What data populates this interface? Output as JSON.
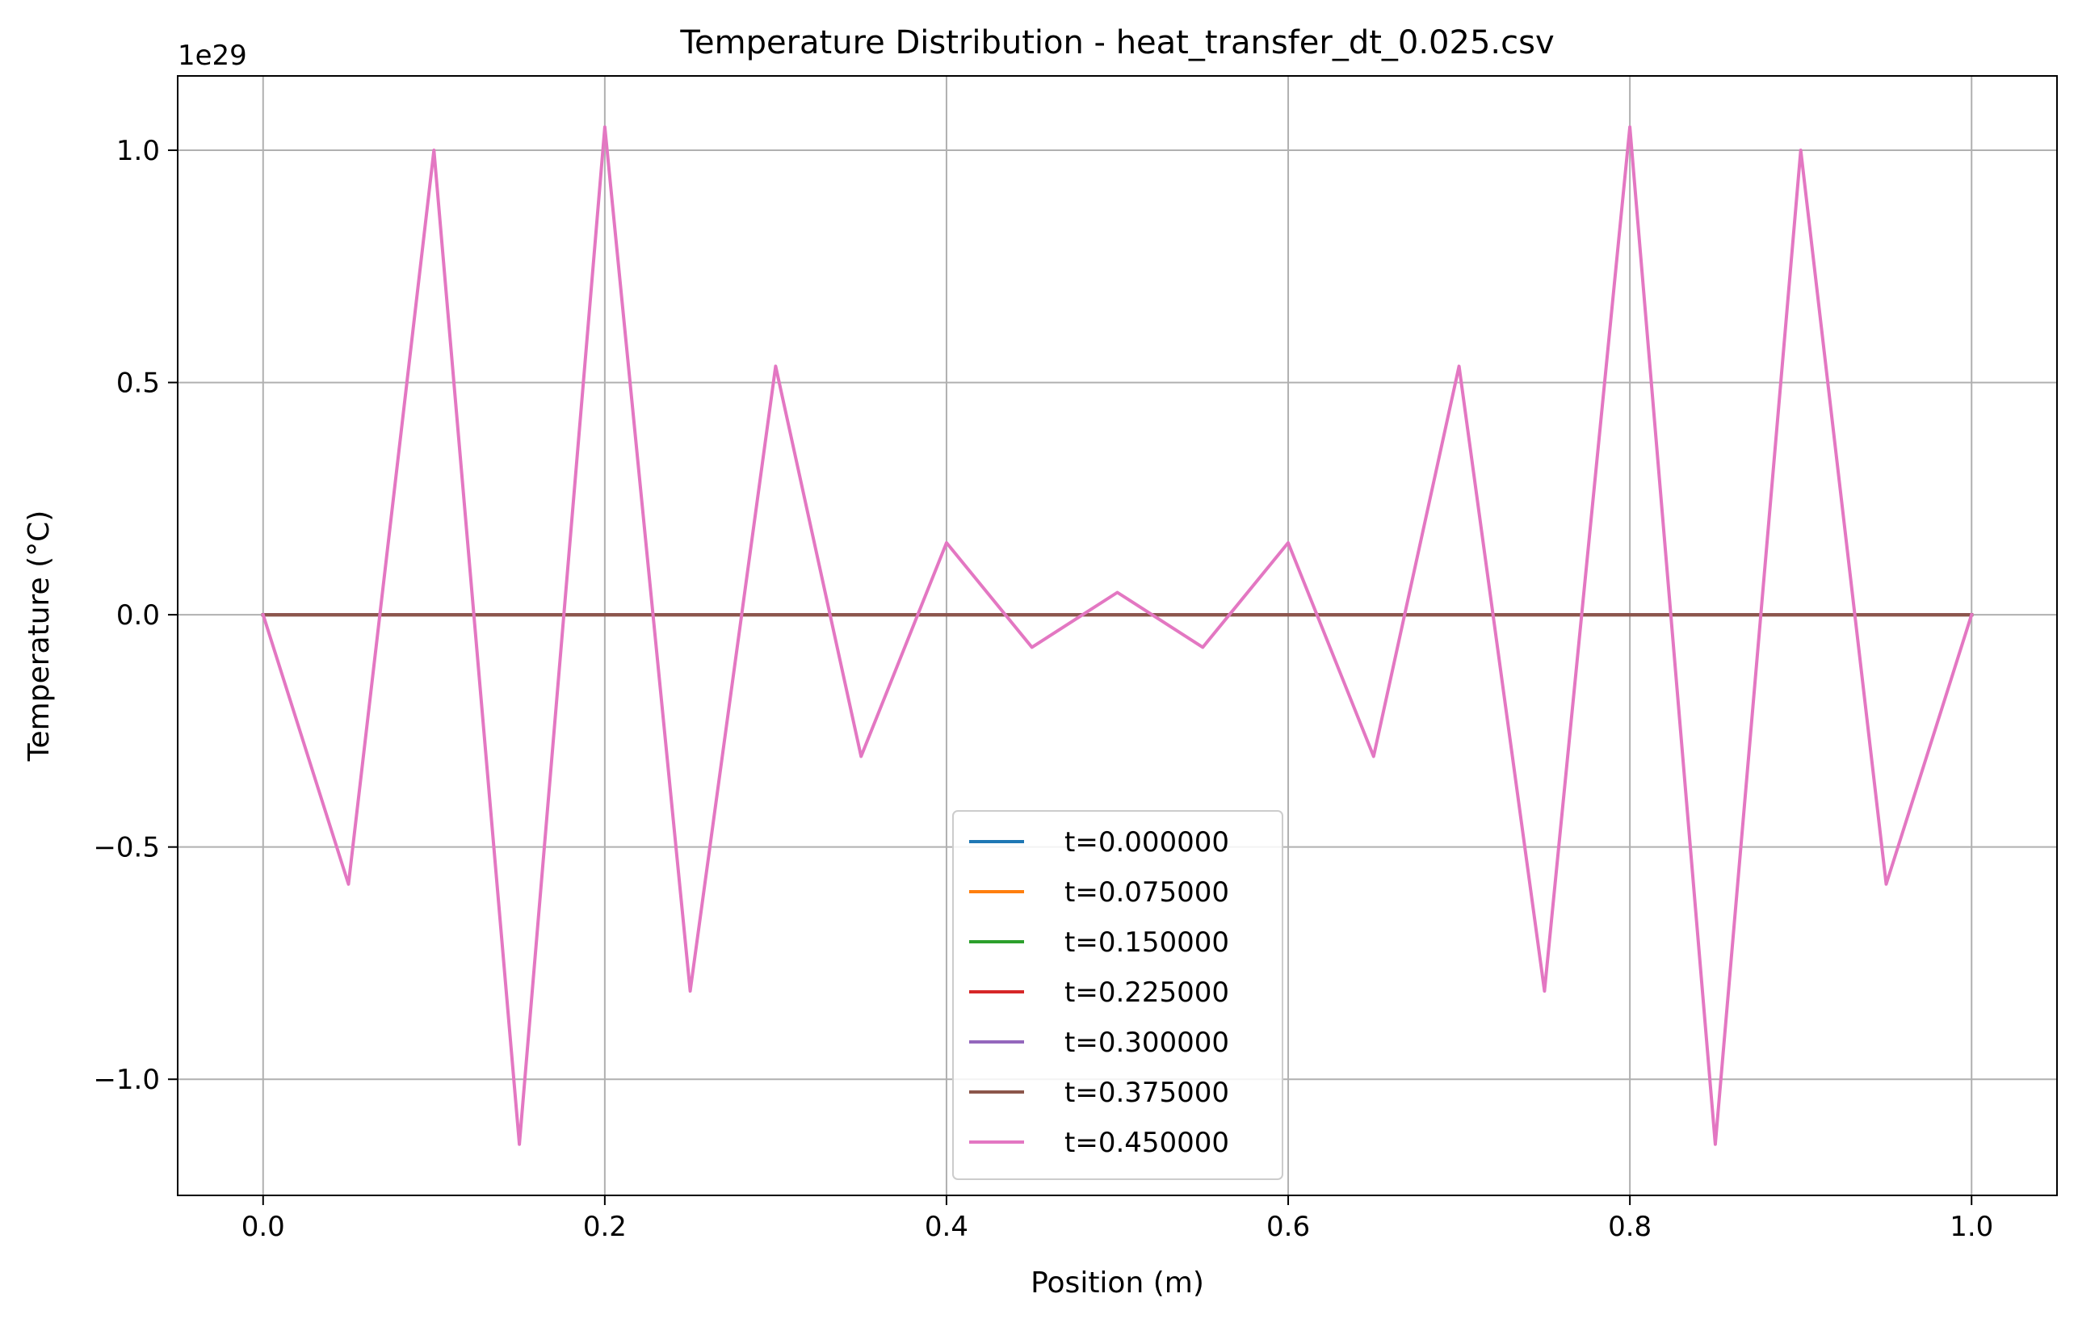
{
  "chart_data": {
    "type": "line",
    "title": "Temperature Distribution - heat_transfer_dt_0.025.csv",
    "xlabel": "Position (m)",
    "ylabel": "Temperature (°C)",
    "y_offset_label": "1e29",
    "xlim": [
      -0.05,
      1.05
    ],
    "ylim": [
      -1.25,
      1.16
    ],
    "y_scale_multiplier": 1e+29,
    "grid": true,
    "legend_position": "lower center",
    "x_ticks": [
      0.0,
      0.2,
      0.4,
      0.6,
      0.8,
      1.0
    ],
    "x_tick_labels": [
      "0.0",
      "0.2",
      "0.4",
      "0.6",
      "0.8",
      "1.0"
    ],
    "y_ticks": [
      -1.0,
      -0.5,
      0.0,
      0.5,
      1.0
    ],
    "y_tick_labels": [
      "−1.0",
      "−0.5",
      "0.0",
      "0.5",
      "1.0"
    ],
    "x": [
      0.0,
      0.05,
      0.1,
      0.15,
      0.2,
      0.25,
      0.3,
      0.35,
      0.4,
      0.45,
      0.5,
      0.55,
      0.6,
      0.65,
      0.7,
      0.75,
      0.8,
      0.85,
      0.9,
      0.95,
      1.0
    ],
    "series": [
      {
        "name": "t=0.000000",
        "color": "#1f77b4",
        "values": [
          0,
          0,
          0,
          0,
          0,
          0,
          0,
          0,
          0,
          0,
          0,
          0,
          0,
          0,
          0,
          0,
          0,
          0,
          0,
          0,
          0
        ]
      },
      {
        "name": "t=0.075000",
        "color": "#ff7f0e",
        "values": [
          0,
          0,
          0,
          0,
          0,
          0,
          0,
          0,
          0,
          0,
          0,
          0,
          0,
          0,
          0,
          0,
          0,
          0,
          0,
          0,
          0
        ]
      },
      {
        "name": "t=0.150000",
        "color": "#2ca02c",
        "values": [
          0,
          0,
          0,
          0,
          0,
          0,
          0,
          0,
          0,
          0,
          0,
          0,
          0,
          0,
          0,
          0,
          0,
          0,
          0,
          0,
          0
        ]
      },
      {
        "name": "t=0.225000",
        "color": "#d62728",
        "values": [
          0,
          0,
          0,
          0,
          0,
          0,
          0,
          0,
          0,
          0,
          0,
          0,
          0,
          0,
          0,
          0,
          0,
          0,
          0,
          0,
          0
        ]
      },
      {
        "name": "t=0.300000",
        "color": "#9467bd",
        "values": [
          0,
          0,
          0,
          0,
          0,
          0,
          0,
          0,
          0,
          0,
          0,
          0,
          0,
          0,
          0,
          0,
          0,
          0,
          0,
          0,
          0
        ]
      },
      {
        "name": "t=0.375000",
        "color": "#8c564b",
        "values": [
          0,
          0,
          0,
          0,
          0,
          0,
          0,
          0,
          0,
          0,
          0,
          0,
          0,
          0,
          0,
          0,
          0,
          0,
          0,
          0,
          0
        ]
      },
      {
        "name": "t=0.450000",
        "color": "#e377c2",
        "values": [
          0.0,
          -0.58,
          1.0,
          -1.14,
          1.05,
          -0.81,
          0.535,
          -0.305,
          0.155,
          -0.07,
          0.048,
          -0.07,
          0.155,
          -0.305,
          0.535,
          -0.81,
          1.05,
          -1.14,
          1.0,
          -0.58,
          0.0
        ]
      }
    ]
  }
}
